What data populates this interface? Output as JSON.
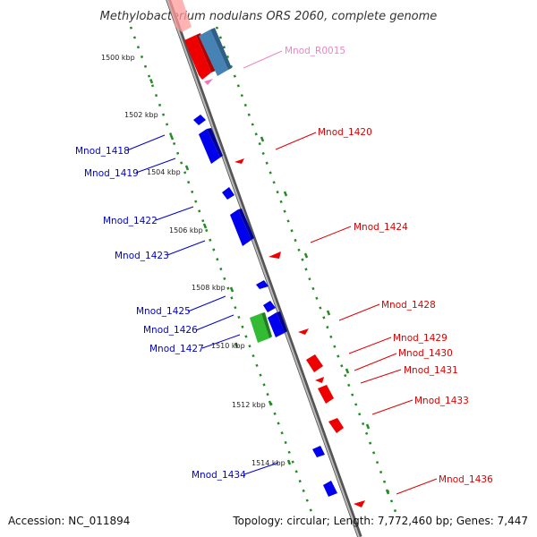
{
  "title": "Methylobacterium nodulans ORS 2060, complete genome",
  "footer": {
    "accession": "Accession: NC_011894",
    "stats": "Topology: circular; Length: 7,772,460 bp; Genes: 7,447"
  },
  "scale_labels": [
    "1500 kbp",
    "1502 kbp",
    "1504 kbp",
    "1506 kbp",
    "1508 kbp",
    "1510 kbp",
    "1512 kbp",
    "1514 kbp"
  ],
  "genes_left": [
    {
      "label": "Mnod_1418"
    },
    {
      "label": "Mnod_1419"
    },
    {
      "label": "Mnod_1422"
    },
    {
      "label": "Mnod_1423"
    },
    {
      "label": "Mnod_1425"
    },
    {
      "label": "Mnod_1426"
    },
    {
      "label": "Mnod_1427"
    },
    {
      "label": "Mnod_1434"
    }
  ],
  "genes_right": [
    {
      "label": "Mnod_R0015"
    },
    {
      "label": "Mnod_1420"
    },
    {
      "label": "Mnod_1424"
    },
    {
      "label": "Mnod_1428"
    },
    {
      "label": "Mnod_1429"
    },
    {
      "label": "Mnod_1430"
    },
    {
      "label": "Mnod_1431"
    },
    {
      "label": "Mnod_1433"
    },
    {
      "label": "Mnod_1436"
    }
  ],
  "colors": {
    "forward": "#0000ff",
    "reverse": "#ff0000",
    "rna": "#ee88cc",
    "highlight_green": "#33bb33",
    "highlight_blue": "#4682b4",
    "scale": "#228b22",
    "backbone": "#888888"
  }
}
